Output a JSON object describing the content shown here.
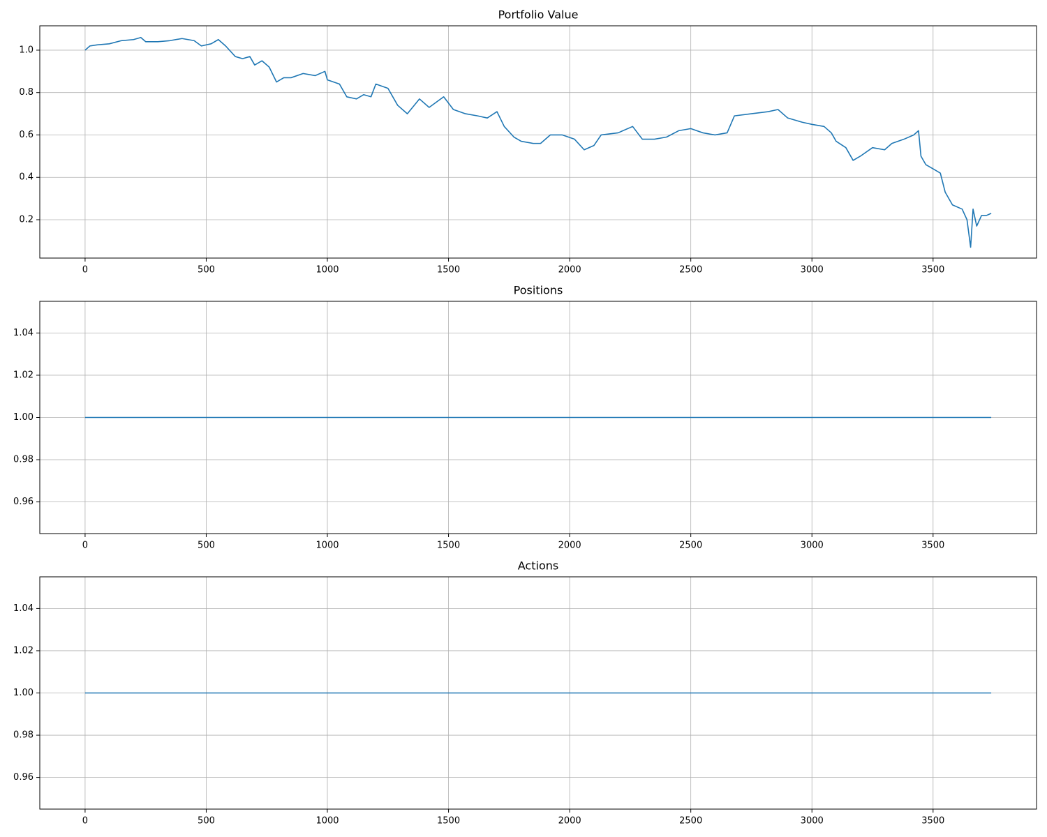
{
  "chart_data": [
    {
      "type": "line",
      "title": "Portfolio Value",
      "color": "#1f77b4",
      "grid": true,
      "x": [
        0,
        20,
        50,
        100,
        150,
        200,
        230,
        250,
        300,
        350,
        400,
        450,
        480,
        520,
        550,
        580,
        620,
        650,
        680,
        700,
        730,
        760,
        790,
        820,
        850,
        900,
        950,
        990,
        1000,
        1050,
        1080,
        1120,
        1150,
        1180,
        1200,
        1250,
        1290,
        1330,
        1380,
        1420,
        1480,
        1520,
        1570,
        1620,
        1660,
        1700,
        1730,
        1770,
        1800,
        1850,
        1880,
        1920,
        1970,
        2020,
        2060,
        2100,
        2130,
        2200,
        2260,
        2300,
        2350,
        2400,
        2450,
        2500,
        2550,
        2600,
        2650,
        2680,
        2750,
        2820,
        2860,
        2900,
        2960,
        3000,
        3050,
        3080,
        3100,
        3140,
        3170,
        3200,
        3250,
        3300,
        3330,
        3380,
        3420,
        3440,
        3450,
        3470,
        3500,
        3530,
        3550,
        3580,
        3620,
        3640,
        3655,
        3665,
        3680,
        3700,
        3720,
        3740
      ],
      "values": [
        1.0,
        1.02,
        1.025,
        1.03,
        1.045,
        1.05,
        1.06,
        1.04,
        1.04,
        1.045,
        1.055,
        1.045,
        1.02,
        1.03,
        1.05,
        1.02,
        0.97,
        0.96,
        0.97,
        0.93,
        0.95,
        0.92,
        0.85,
        0.87,
        0.87,
        0.89,
        0.88,
        0.9,
        0.86,
        0.84,
        0.78,
        0.77,
        0.79,
        0.78,
        0.84,
        0.82,
        0.74,
        0.7,
        0.77,
        0.73,
        0.78,
        0.72,
        0.7,
        0.69,
        0.68,
        0.71,
        0.64,
        0.59,
        0.57,
        0.56,
        0.56,
        0.6,
        0.6,
        0.58,
        0.53,
        0.55,
        0.6,
        0.61,
        0.64,
        0.58,
        0.58,
        0.59,
        0.62,
        0.63,
        0.61,
        0.6,
        0.61,
        0.69,
        0.7,
        0.71,
        0.72,
        0.68,
        0.66,
        0.65,
        0.64,
        0.61,
        0.57,
        0.54,
        0.48,
        0.5,
        0.54,
        0.53,
        0.56,
        0.58,
        0.6,
        0.62,
        0.5,
        0.46,
        0.44,
        0.42,
        0.33,
        0.27,
        0.25,
        0.2,
        0.07,
        0.25,
        0.17,
        0.22,
        0.22,
        0.23
      ],
      "xlim": [
        -187,
        3927
      ],
      "xticks": [
        0,
        500,
        1000,
        1500,
        2000,
        2500,
        3000,
        3500
      ],
      "ylim": [
        0.019,
        1.115
      ],
      "yticks": [
        0.2,
        0.4,
        0.6,
        0.8,
        {
          "value": 1,
          "label": "1.0"
        }
      ]
    },
    {
      "type": "line",
      "title": "Positions",
      "color": "#1f77b4",
      "grid": true,
      "x": [
        0,
        3740
      ],
      "values": [
        1,
        1
      ],
      "xlim": [
        -187,
        3927
      ],
      "xticks": [
        0,
        500,
        1000,
        1500,
        2000,
        2500,
        3000,
        3500
      ],
      "ylim": [
        0.945,
        1.055
      ],
      "yticks": [
        0.96,
        0.98,
        {
          "value": 1,
          "label": "1.00"
        },
        1.02,
        1.04
      ]
    },
    {
      "type": "line",
      "title": "Actions",
      "color": "#1f77b4",
      "grid": true,
      "x": [
        0,
        3740
      ],
      "values": [
        1,
        1
      ],
      "xlim": [
        -187,
        3927
      ],
      "xticks": [
        0,
        500,
        1000,
        1500,
        2000,
        2500,
        3000,
        3500
      ],
      "ylim": [
        0.945,
        1.055
      ],
      "yticks": [
        0.96,
        0.98,
        {
          "value": 1,
          "label": "1.00"
        },
        1.02,
        1.04
      ]
    }
  ]
}
